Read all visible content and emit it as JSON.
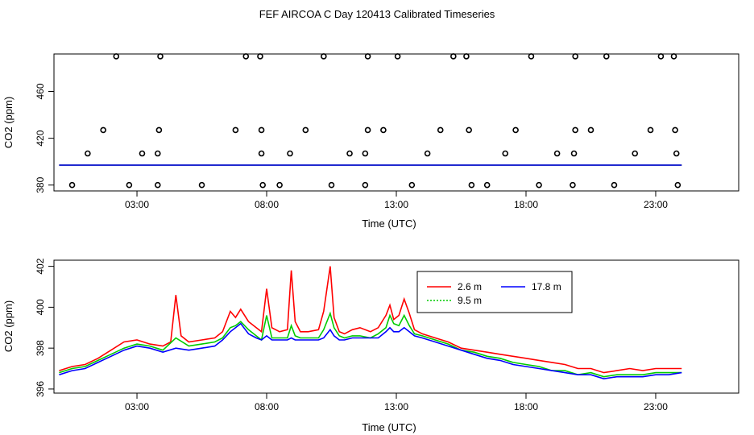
{
  "figure": {
    "title": "FEF AIRCOA C  Day 120413  Calibrated Timeseries"
  },
  "chart_data": [
    {
      "type": "scatter",
      "title": "",
      "xlabel": "Time (UTC)",
      "ylabel": "CO2 (ppm)",
      "xlim": [
        -0.2,
        26.2
      ],
      "ylim": [
        375,
        492
      ],
      "xticks": [
        3,
        8,
        13,
        18,
        23
      ],
      "xtick_labels": [
        "03:00",
        "08:00",
        "13:00",
        "18:00",
        "23:00"
      ],
      "yticks": [
        380,
        420,
        460
      ],
      "ytick_labels": [
        "380",
        "420",
        "460"
      ],
      "points_x": [
        2.2,
        3.9,
        7.2,
        7.75,
        10.2,
        11.9,
        13.05,
        15.2,
        15.7,
        18.2,
        19.9,
        21.1,
        23.2,
        23.7,
        1.1,
        3.2,
        3.8,
        7.8,
        8.9,
        11.2,
        11.8,
        14.2,
        17.2,
        19.2,
        19.85,
        22.2,
        23.8,
        1.7,
        3.85,
        6.8,
        7.8,
        9.5,
        11.9,
        12.5,
        14.7,
        15.8,
        17.6,
        19.9,
        20.5,
        22.8,
        23.75,
        0.5,
        2.7,
        3.8,
        5.5,
        7.85,
        8.5,
        10.5,
        11.8,
        13.6,
        15.9,
        16.5,
        18.5,
        19.8,
        21.4,
        23.85
      ],
      "points_y": [
        490,
        490,
        490,
        490,
        490,
        490,
        490,
        490,
        490,
        490,
        490,
        490,
        490,
        490,
        407,
        407,
        407,
        407,
        407,
        407,
        407,
        407,
        407,
        407,
        407,
        407,
        407,
        427,
        427,
        427,
        427,
        427,
        427,
        427,
        427,
        427,
        427,
        427,
        427,
        427,
        427,
        380,
        380,
        380,
        380,
        380,
        380,
        380,
        380,
        380,
        380,
        380,
        380,
        380,
        380,
        380
      ],
      "series": [
        {
          "name": "2.6 m",
          "color": "#ff0000",
          "x": [
            0,
            24
          ],
          "values": [
            397,
            397
          ]
        },
        {
          "name": "9.5 m",
          "color": "#00cc00",
          "x": [
            0,
            24
          ],
          "values": [
            397,
            397
          ]
        },
        {
          "name": "17.8 m",
          "color": "#0000ff",
          "x": [
            0,
            24
          ],
          "values": [
            397,
            397
          ]
        }
      ]
    },
    {
      "type": "line",
      "title": "",
      "xlabel": "Time (UTC)",
      "ylabel": "CO2 (ppm)",
      "xlim": [
        -0.2,
        26.2
      ],
      "ylim": [
        395.8,
        402.3
      ],
      "xticks": [
        3,
        8,
        13,
        18,
        23
      ],
      "xtick_labels": [
        "03:00",
        "08:00",
        "13:00",
        "18:00",
        "23:00"
      ],
      "yticks": [
        396,
        398,
        400,
        402
      ],
      "ytick_labels": [
        "396",
        "398",
        "400",
        "402"
      ],
      "legend": {
        "placement": "top-right",
        "entries": [
          "2.6 m",
          "9.5 m",
          "17.8 m"
        ]
      },
      "series": [
        {
          "name": "2.6 m",
          "color": "#ff0000",
          "x": [
            0,
            0.5,
            1,
            1.5,
            2,
            2.5,
            3,
            3.5,
            4,
            4.3,
            4.5,
            4.7,
            5,
            5.5,
            6,
            6.3,
            6.6,
            6.8,
            7,
            7.3,
            7.6,
            7.8,
            8,
            8.2,
            8.5,
            8.8,
            8.95,
            9.1,
            9.3,
            9.6,
            10,
            10.2,
            10.45,
            10.6,
            10.8,
            11,
            11.3,
            11.6,
            12,
            12.3,
            12.6,
            12.75,
            12.9,
            13.1,
            13.3,
            13.5,
            13.7,
            14,
            14.5,
            15,
            15.5,
            16,
            16.5,
            17,
            17.5,
            18,
            18.5,
            19,
            19.5,
            20,
            20.5,
            21,
            21.5,
            22,
            22.5,
            23,
            23.5,
            24
          ],
          "values": [
            396.9,
            397.1,
            397.2,
            397.5,
            397.9,
            398.3,
            398.4,
            398.2,
            398.1,
            398.3,
            400.6,
            398.6,
            398.3,
            398.4,
            398.5,
            398.8,
            399.8,
            399.5,
            399.9,
            399.3,
            399.0,
            398.8,
            400.9,
            399.0,
            398.8,
            398.9,
            401.8,
            399.3,
            398.8,
            398.8,
            398.9,
            399.8,
            402.0,
            399.5,
            398.8,
            398.7,
            398.9,
            399.0,
            398.8,
            399.0,
            399.6,
            400.1,
            399.4,
            399.6,
            400.4,
            399.7,
            398.9,
            398.7,
            398.5,
            398.3,
            398.0,
            397.9,
            397.8,
            397.7,
            397.6,
            397.5,
            397.4,
            397.3,
            397.2,
            397.0,
            397.0,
            396.8,
            396.9,
            397.0,
            396.9,
            397.0,
            397.0,
            397.0
          ]
        },
        {
          "name": "9.5 m",
          "color": "#00cc00",
          "x": [
            0,
            0.5,
            1,
            1.5,
            2,
            2.5,
            3,
            3.5,
            4,
            4.5,
            5,
            5.5,
            6,
            6.3,
            6.6,
            6.8,
            7,
            7.3,
            7.6,
            7.8,
            8,
            8.2,
            8.5,
            8.8,
            8.95,
            9.1,
            9.3,
            9.6,
            10,
            10.2,
            10.45,
            10.6,
            10.8,
            11,
            11.3,
            11.6,
            12,
            12.3,
            12.6,
            12.75,
            12.9,
            13.1,
            13.3,
            13.5,
            13.7,
            14,
            14.5,
            15,
            15.5,
            16,
            16.5,
            17,
            17.5,
            18,
            18.5,
            19,
            19.5,
            20,
            20.5,
            21,
            21.5,
            22,
            22.5,
            23,
            23.5,
            24
          ],
          "values": [
            396.8,
            397.0,
            397.1,
            397.4,
            397.7,
            398.0,
            398.2,
            398.1,
            397.9,
            398.5,
            398.1,
            398.2,
            398.3,
            398.5,
            399.0,
            399.1,
            399.3,
            398.9,
            398.6,
            398.4,
            399.6,
            398.5,
            398.5,
            398.5,
            399.1,
            398.6,
            398.5,
            398.5,
            398.5,
            398.9,
            399.7,
            399.0,
            398.6,
            398.5,
            398.6,
            398.6,
            398.5,
            398.7,
            399.0,
            399.6,
            399.2,
            399.1,
            399.6,
            399.1,
            398.7,
            398.6,
            398.4,
            398.2,
            397.9,
            397.8,
            397.6,
            397.5,
            397.3,
            397.2,
            397.1,
            396.9,
            396.9,
            396.7,
            396.8,
            396.6,
            396.7,
            396.7,
            396.7,
            396.8,
            396.8,
            396.8
          ]
        },
        {
          "name": "17.8 m",
          "color": "#0000ff",
          "x": [
            0,
            0.5,
            1,
            1.5,
            2,
            2.5,
            3,
            3.5,
            4,
            4.5,
            5,
            5.5,
            6,
            6.3,
            6.6,
            6.8,
            7,
            7.3,
            7.6,
            7.8,
            8,
            8.2,
            8.5,
            8.8,
            8.95,
            9.1,
            9.3,
            9.6,
            10,
            10.2,
            10.45,
            10.6,
            10.8,
            11,
            11.3,
            11.6,
            12,
            12.3,
            12.6,
            12.75,
            12.9,
            13.1,
            13.3,
            13.5,
            13.7,
            14,
            14.5,
            15,
            15.5,
            16,
            16.5,
            17,
            17.5,
            18,
            18.5,
            19,
            19.5,
            20,
            20.5,
            21,
            21.5,
            22,
            22.5,
            23,
            23.5,
            24
          ],
          "values": [
            396.7,
            396.9,
            397.0,
            397.3,
            397.6,
            397.9,
            398.1,
            398.0,
            397.8,
            398.0,
            397.9,
            398.0,
            398.1,
            398.4,
            398.8,
            399.0,
            399.2,
            398.7,
            398.5,
            398.4,
            398.6,
            398.4,
            398.4,
            398.4,
            398.5,
            398.4,
            398.4,
            398.4,
            398.4,
            398.5,
            398.9,
            398.6,
            398.4,
            398.4,
            398.5,
            398.5,
            398.5,
            398.5,
            398.8,
            399.0,
            398.8,
            398.8,
            399.0,
            398.8,
            398.6,
            398.5,
            398.3,
            398.1,
            397.9,
            397.7,
            397.5,
            397.4,
            397.2,
            397.1,
            397.0,
            396.9,
            396.8,
            396.7,
            396.7,
            396.5,
            396.6,
            396.6,
            396.6,
            396.7,
            396.7,
            396.8
          ]
        }
      ]
    }
  ]
}
